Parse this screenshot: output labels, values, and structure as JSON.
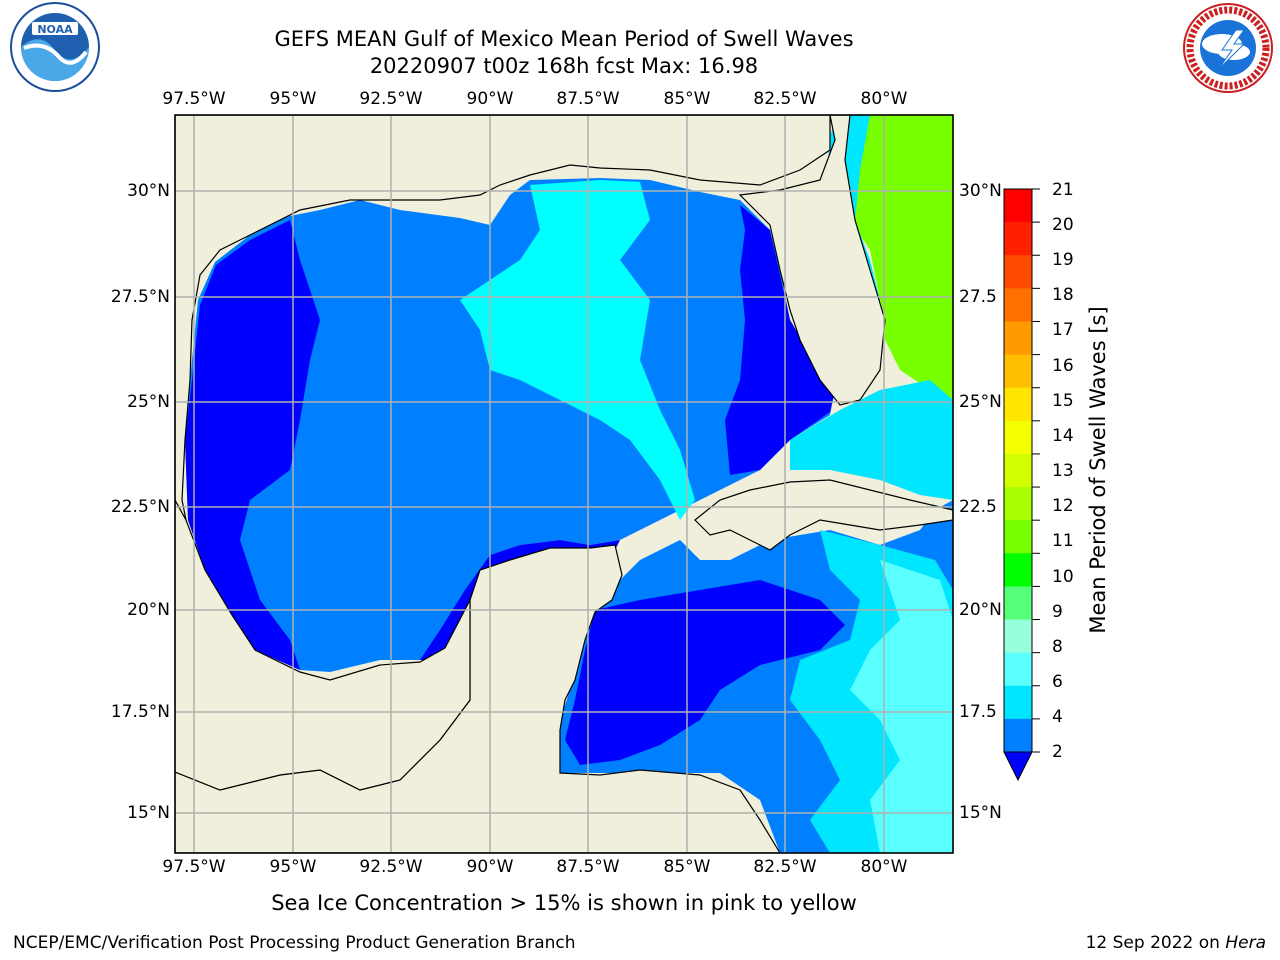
{
  "title": {
    "line1": "GEFS MEAN Gulf of Mexico Mean Period of Swell Waves",
    "line2": "20220907 t00z 168h fcst   Max: 16.98"
  },
  "map": {
    "lon_labels": [
      "97.5°W",
      "95°W",
      "92.5°W",
      "90°W",
      "87.5°W",
      "85°W",
      "82.5°W",
      "80°W"
    ],
    "lat_labels_left": [
      "30°N",
      "27.5°N",
      "25°N",
      "22.5°N",
      "20°N",
      "17.5°N",
      "15°N"
    ],
    "lat_labels_right": [
      "30°N",
      "27.5",
      "25°N",
      "22.5",
      "20°N",
      "17.5",
      "15°N"
    ],
    "colors": {
      "land": "#efefdc",
      "grid": "#b0b0b0"
    }
  },
  "colorbar": {
    "label": "Mean Period of Swell Waves [s]",
    "ticks": [
      "21",
      "20",
      "19",
      "18",
      "17",
      "16",
      "15",
      "14",
      "13",
      "12",
      "11",
      "10",
      "9",
      "8",
      "6",
      "4",
      "2"
    ],
    "colors_top_to_bottom": [
      "#ff0000",
      "#ff2000",
      "#ff4a00",
      "#ff7000",
      "#ff9a00",
      "#ffbe00",
      "#ffe600",
      "#f5ff00",
      "#d2ff00",
      "#a8ff00",
      "#78ff00",
      "#00ff00",
      "#55ff78",
      "#96ffdc",
      "#5affff",
      "#00e6ff",
      "#0080ff"
    ],
    "extend_color": "#0000ff"
  },
  "note": "Sea Ice Concentration > 15% is shown in pink to yellow",
  "footer": {
    "left": "NCEP/EMC/Verification Post Processing Product Generation Branch",
    "right_date": "12 Sep 2022 on",
    "right_host": "Hera"
  },
  "logos": {
    "left": "noaa-logo",
    "right": "nws-logo"
  }
}
